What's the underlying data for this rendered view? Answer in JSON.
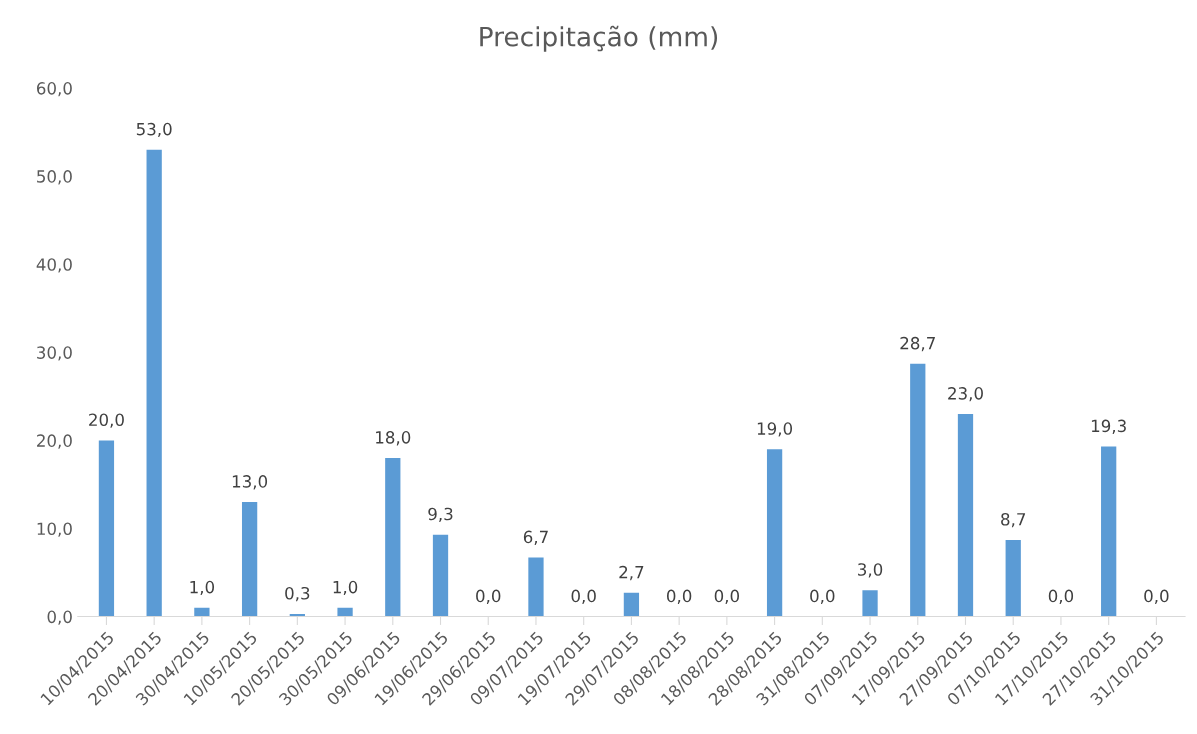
{
  "chart_data": {
    "type": "bar",
    "title": "Precipitação (mm)",
    "categories": [
      "10/04/2015",
      "20/04/2015",
      "30/04/2015",
      "10/05/2015",
      "20/05/2015",
      "30/05/2015",
      "09/06/2015",
      "19/06/2015",
      "29/06/2015",
      "09/07/2015",
      "19/07/2015",
      "29/07/2015",
      "08/08/2015",
      "18/08/2015",
      "28/08/2015",
      "31/08/2015",
      "07/09/2015",
      "17/09/2015",
      "27/09/2015",
      "07/10/2015",
      "17/10/2015",
      "27/10/2015",
      "31/10/2015"
    ],
    "values": [
      20.0,
      53.0,
      1.0,
      13.0,
      0.3,
      1.0,
      18.0,
      9.3,
      0.0,
      6.7,
      0.0,
      2.7,
      0.0,
      0.0,
      19.0,
      0.0,
      3.0,
      28.7,
      23.0,
      8.7,
      0.0,
      19.3,
      0.0
    ],
    "value_labels": [
      "20,0",
      "53,0",
      "1,0",
      "13,0",
      "0,3",
      "1,0",
      "18,0",
      "9,3",
      "0,0",
      "6,7",
      "0,0",
      "2,7",
      "0,0",
      "0,0",
      "19,0",
      "0,0",
      "3,0",
      "28,7",
      "23,0",
      "8,7",
      "0,0",
      "19,3",
      "0,0"
    ],
    "color": "#5b9bd5",
    "ylim": [
      0,
      60
    ],
    "yticks": [
      {
        "value": 0,
        "label": "0,0"
      },
      {
        "value": 10,
        "label": "10,0"
      },
      {
        "value": 20,
        "label": "20,0"
      },
      {
        "value": 30,
        "label": "30,0"
      },
      {
        "value": 40,
        "label": "40,0"
      },
      {
        "value": 50,
        "label": "50,0"
      },
      {
        "value": 60,
        "label": "60,0"
      }
    ],
    "grid": false
  }
}
